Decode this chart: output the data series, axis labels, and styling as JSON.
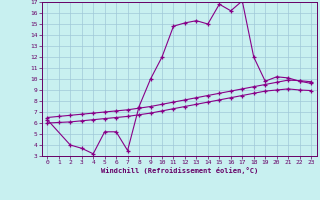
{
  "xlabel": "Windchill (Refroidissement éolien,°C)",
  "background_color": "#c8f0f0",
  "grid_color": "#a0c8d8",
  "line_color": "#880088",
  "xlim": [
    -0.5,
    23.5
  ],
  "ylim": [
    3,
    17
  ],
  "xticks": [
    0,
    1,
    2,
    3,
    4,
    5,
    6,
    7,
    8,
    9,
    10,
    11,
    12,
    13,
    14,
    15,
    16,
    17,
    18,
    19,
    20,
    21,
    22,
    23
  ],
  "yticks": [
    3,
    4,
    5,
    6,
    7,
    8,
    9,
    10,
    11,
    12,
    13,
    14,
    15,
    16,
    17
  ],
  "line1_x": [
    0,
    1,
    2,
    3,
    4,
    5,
    6,
    7,
    8,
    9,
    10,
    11,
    12,
    13,
    14,
    15,
    16,
    17,
    18,
    19,
    20,
    21,
    22,
    23
  ],
  "line1_y": [
    6.5,
    6.6,
    6.7,
    6.8,
    6.9,
    7.0,
    7.1,
    7.2,
    7.35,
    7.5,
    7.7,
    7.9,
    8.1,
    8.3,
    8.5,
    8.7,
    8.9,
    9.1,
    9.3,
    9.5,
    9.7,
    9.9,
    9.85,
    9.75
  ],
  "line2_x": [
    0,
    1,
    2,
    3,
    4,
    5,
    6,
    7,
    8,
    9,
    10,
    11,
    12,
    13,
    14,
    15,
    16,
    17,
    18,
    19,
    20,
    21,
    22,
    23
  ],
  "line2_y": [
    6.0,
    6.05,
    6.1,
    6.2,
    6.3,
    6.4,
    6.5,
    6.6,
    6.75,
    6.9,
    7.1,
    7.3,
    7.5,
    7.7,
    7.9,
    8.1,
    8.3,
    8.5,
    8.7,
    8.9,
    9.0,
    9.1,
    9.0,
    8.95
  ],
  "line3_x": [
    0,
    2,
    3,
    4,
    5,
    6,
    7,
    8,
    9,
    10,
    11,
    12,
    13,
    14,
    15,
    16,
    17,
    18,
    19,
    20,
    21,
    22,
    23
  ],
  "line3_y": [
    6.3,
    4.0,
    3.7,
    3.2,
    5.2,
    5.2,
    3.5,
    7.5,
    10.0,
    12.0,
    14.8,
    15.1,
    15.3,
    15.0,
    16.8,
    16.2,
    17.1,
    12.0,
    9.8,
    10.2,
    10.1,
    9.8,
    9.6
  ]
}
